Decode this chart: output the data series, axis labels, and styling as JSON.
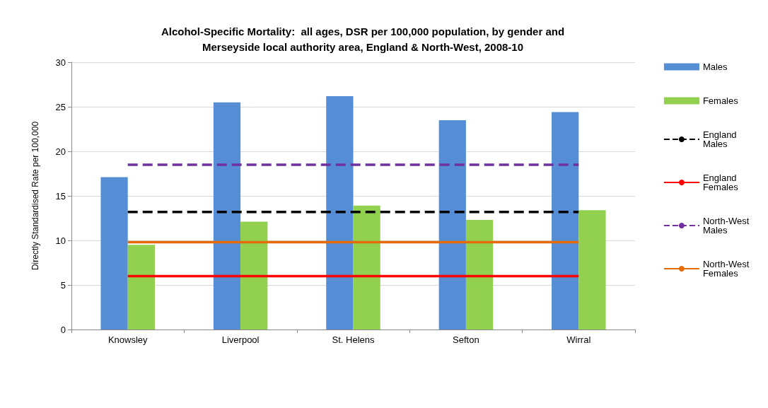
{
  "chart_data": {
    "type": "bar",
    "title": "Alcohol-Specific Mortality:  all ages, DSR per 100,000 population, by gender and\nMerseyside local authority area, England & North-West, 2008-10",
    "ylabel": "Directly Standardised Rate per 100,000",
    "categories": [
      "Knowsley",
      "Liverpool",
      "St. Helens",
      "Sefton",
      "Wirral"
    ],
    "series": [
      {
        "name": "Males",
        "color": "#558ed5",
        "values": [
          17.1,
          25.5,
          26.2,
          23.5,
          24.4
        ]
      },
      {
        "name": "Females",
        "color": "#92d050",
        "values": [
          9.5,
          12.1,
          13.9,
          12.3,
          13.4
        ]
      },
      {
        "name": "England Males",
        "type": "line",
        "line_style": "dashed",
        "color": "#000000",
        "values": [
          13.2,
          13.2,
          13.2,
          13.2,
          13.2
        ]
      },
      {
        "name": "England Females",
        "type": "line",
        "line_style": "solid",
        "color": "#ff0000",
        "values": [
          6.0,
          6.0,
          6.0,
          6.0,
          6.0
        ]
      },
      {
        "name": "North-West Males",
        "type": "line",
        "line_style": "dashed",
        "color": "#7030a0",
        "values": [
          18.5,
          18.5,
          18.5,
          18.5,
          18.5
        ]
      },
      {
        "name": "North-West Females",
        "type": "line",
        "line_style": "solid",
        "color": "#e36c09",
        "values": [
          9.8,
          9.8,
          9.8,
          9.8,
          9.8
        ]
      }
    ],
    "ylim": [
      0,
      30
    ],
    "yticks": [
      0,
      5,
      10,
      15,
      20,
      25,
      30
    ],
    "grid": "y",
    "legend": "right",
    "marker": "none"
  }
}
